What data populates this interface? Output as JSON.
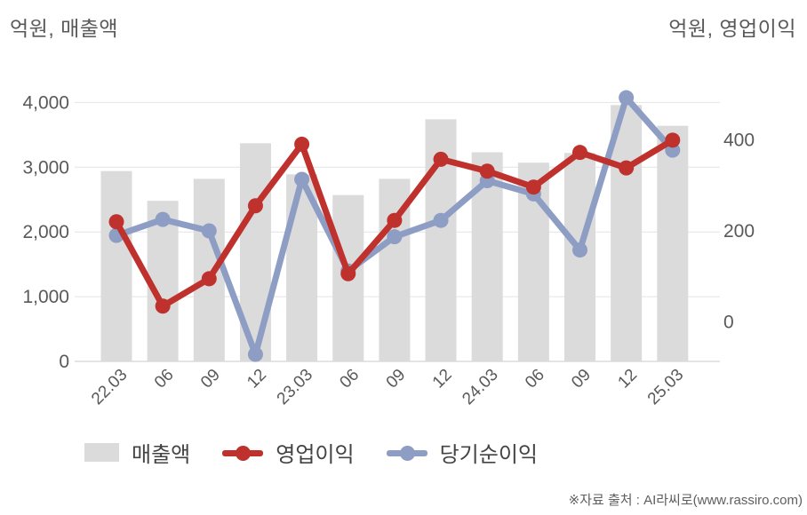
{
  "header": {
    "left_axis_title": "억원, 매출액",
    "right_axis_title": "억원, 영업이익"
  },
  "footer": {
    "source": "※자료 출처 : AI라씨로(www.rassiro.com)"
  },
  "colors": {
    "bar": "#dbdbdb",
    "operating_profit_line": "#bf312d",
    "net_income_line": "#8d9dc3",
    "gridline": "#e4e4e4",
    "axis_baseline": "#c9c9c9",
    "tick_text": "#595959",
    "legend_text": "#434343"
  },
  "chart_data": {
    "type": "bar",
    "subtype": "bar+line combo, dual axis",
    "categories": [
      "22.03",
      "06",
      "09",
      "12",
      "23.03",
      "06",
      "09",
      "12",
      "24.03",
      "06",
      "09",
      "12",
      "25.03"
    ],
    "series": [
      {
        "name": "매출액",
        "type": "bar",
        "axis": "left",
        "color": "#dbdbdb",
        "values": [
          2940,
          2480,
          2820,
          3370,
          2890,
          2570,
          2820,
          3740,
          3230,
          3070,
          3220,
          3960,
          3640
        ]
      },
      {
        "name": "영업이익",
        "type": "line",
        "axis": "right",
        "color": "#bf312d",
        "values": [
          220,
          35,
          95,
          255,
          390,
          106,
          223,
          357,
          331,
          296,
          372,
          338,
          399
        ]
      },
      {
        "name": "당기순이익",
        "type": "line",
        "axis": "right",
        "color": "#8d9dc3",
        "values": [
          190,
          225,
          200,
          -71,
          313,
          112,
          187,
          223,
          310,
          281,
          158,
          492,
          377
        ]
      }
    ],
    "left_axis": {
      "title": "억원, 매출액",
      "tick_values": [
        0,
        1000,
        2000,
        3000,
        4000
      ],
      "tick_labels": [
        "0",
        "1,000",
        "2,000",
        "3,000",
        "4,000"
      ],
      "range": [
        0,
        4300
      ]
    },
    "right_axis": {
      "title": "억원, 영업이익",
      "tick_values": [
        0,
        200,
        400
      ],
      "tick_labels": [
        "0",
        "200",
        "400"
      ],
      "range": [
        -87,
        480
      ]
    },
    "grid": true,
    "legend_position": "bottom"
  }
}
